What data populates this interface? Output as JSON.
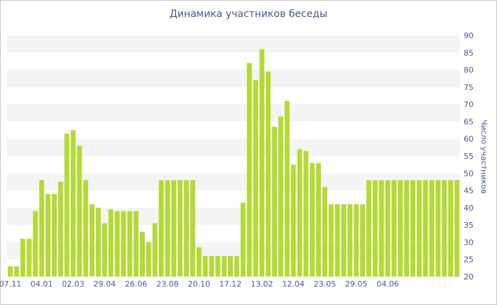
{
  "chart_data": {
    "type": "bar",
    "title": "Динамика участников беседы",
    "xlabel": "",
    "ylabel": "Число участников",
    "ylim": [
      20,
      90
    ],
    "yticks": [
      20,
      25,
      30,
      35,
      40,
      45,
      50,
      55,
      60,
      65,
      70,
      75,
      80,
      85,
      90
    ],
    "y_axis_position": "right",
    "grid": "alternating-bands",
    "x_tick_labels": [
      {
        "index": 0,
        "label": "07.11"
      },
      {
        "index": 5,
        "label": "04.01"
      },
      {
        "index": 10,
        "label": "02.03"
      },
      {
        "index": 15,
        "label": "29.04"
      },
      {
        "index": 20,
        "label": "26.06"
      },
      {
        "index": 25,
        "label": "23.08"
      },
      {
        "index": 30,
        "label": "20.10"
      },
      {
        "index": 35,
        "label": "17.12"
      },
      {
        "index": 40,
        "label": "13.02"
      },
      {
        "index": 45,
        "label": "12.04"
      },
      {
        "index": 50,
        "label": "23.05"
      },
      {
        "index": 55,
        "label": "29.05"
      },
      {
        "index": 60,
        "label": "04.06"
      }
    ],
    "values": [
      23,
      23,
      31,
      31,
      39,
      48,
      44,
      44,
      47.5,
      61.5,
      62.5,
      58,
      48,
      41,
      40,
      35.5,
      39.5,
      39,
      39,
      39,
      39,
      33,
      30,
      35.5,
      48,
      48,
      48,
      48,
      48,
      48,
      28.5,
      26,
      26,
      26,
      26,
      26,
      26,
      41.5,
      82,
      77,
      86,
      79.5,
      63.5,
      66.5,
      71,
      52.5,
      57,
      56.5,
      53,
      53,
      46,
      41,
      41,
      41,
      41,
      41,
      41,
      48,
      48,
      48,
      48,
      48,
      48,
      48,
      48,
      48,
      48,
      48,
      48,
      48,
      48,
      48
    ]
  },
  "colors": {
    "bar": "#b5d935",
    "band": "#f4f4f4",
    "text": "#4a5a8c"
  }
}
